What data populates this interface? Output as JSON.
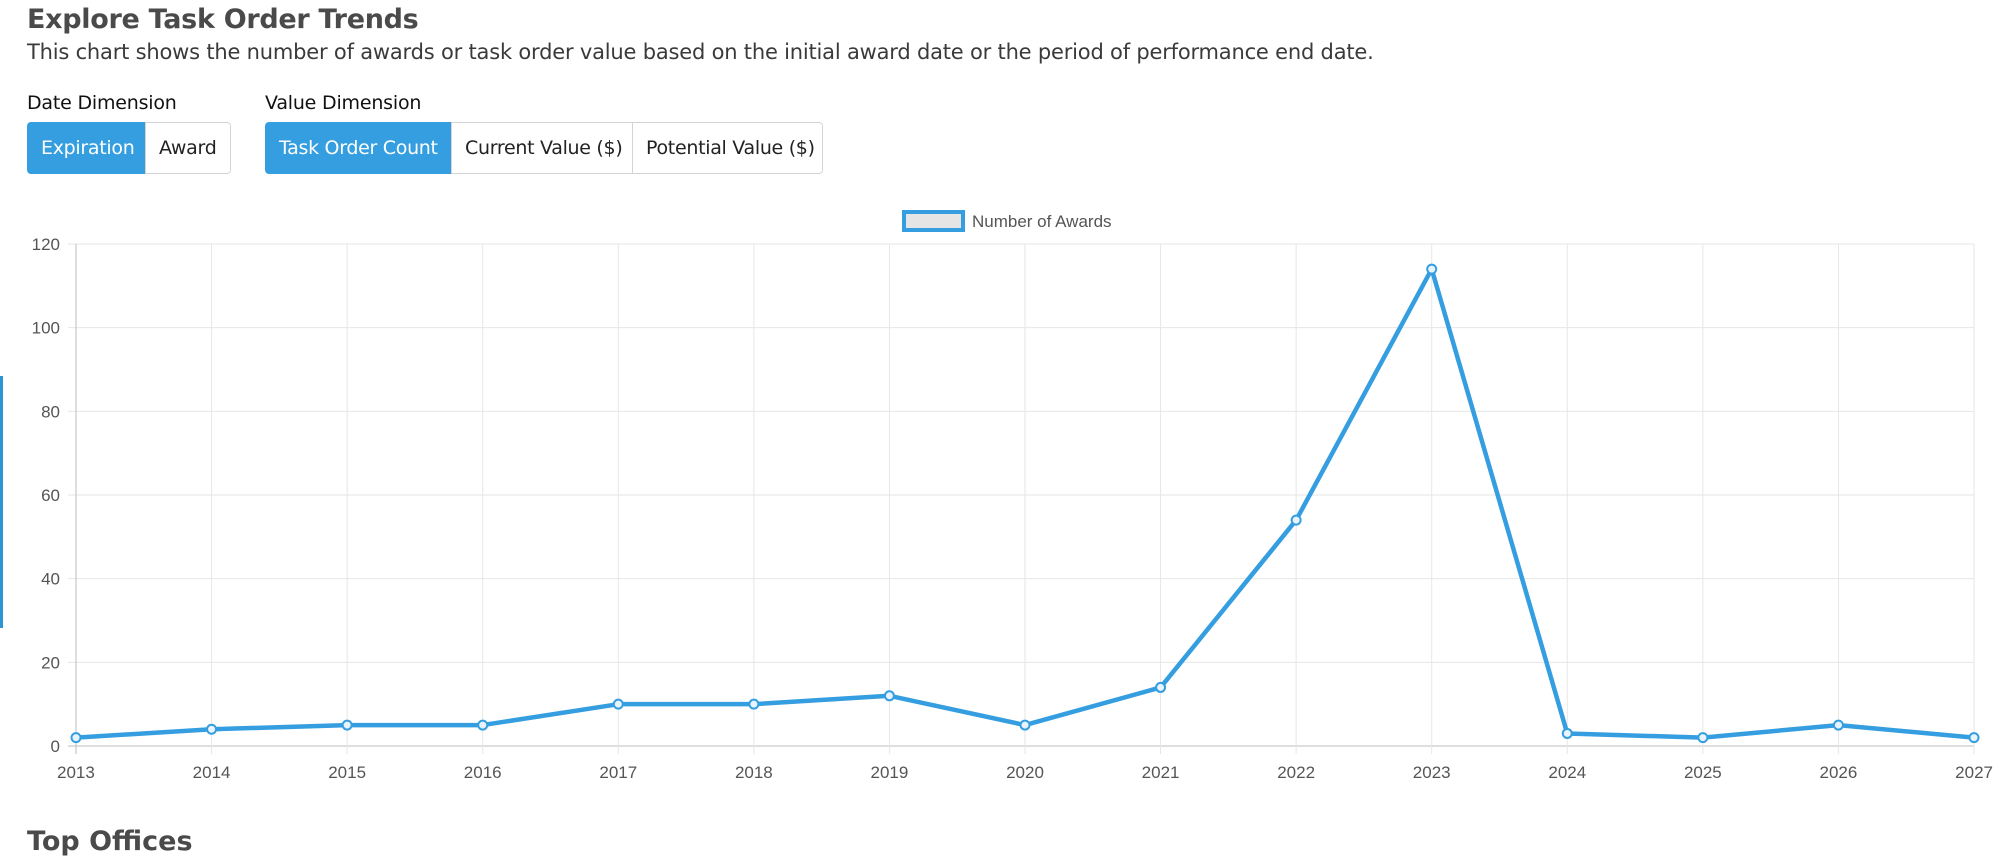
{
  "header": {
    "title": "Explore Task Order Trends",
    "subtitle": "This chart shows the number of awards or task order value based on the initial award date or the period of performance end date."
  },
  "date_dimension": {
    "label": "Date Dimension",
    "options": [
      "Expiration",
      "Award"
    ],
    "selected": "Expiration"
  },
  "value_dimension": {
    "label": "Value Dimension",
    "options": [
      "Task Order Count",
      "Current Value ($)",
      "Potential Value ($)"
    ],
    "selected": "Task Order Count"
  },
  "next_section": {
    "title": "Top Offices"
  },
  "colors": {
    "accent": "#349ee0",
    "line": "#349ee0",
    "legend_fill": "#e5e5e5",
    "grid": "#e6e6e6"
  },
  "chart_data": {
    "type": "line",
    "categories": [
      "2013",
      "2014",
      "2015",
      "2016",
      "2017",
      "2018",
      "2019",
      "2020",
      "2021",
      "2022",
      "2023",
      "2024",
      "2025",
      "2026",
      "2027"
    ],
    "series": [
      {
        "name": "Number of Awards",
        "values": [
          2,
          4,
          5,
          5,
          10,
          10,
          12,
          5,
          14,
          54,
          114,
          3,
          2,
          5,
          2
        ]
      }
    ],
    "ylim": [
      0,
      120
    ],
    "yticks": [
      0,
      20,
      40,
      60,
      80,
      100,
      120
    ],
    "grid": true,
    "legend": "top-center"
  }
}
